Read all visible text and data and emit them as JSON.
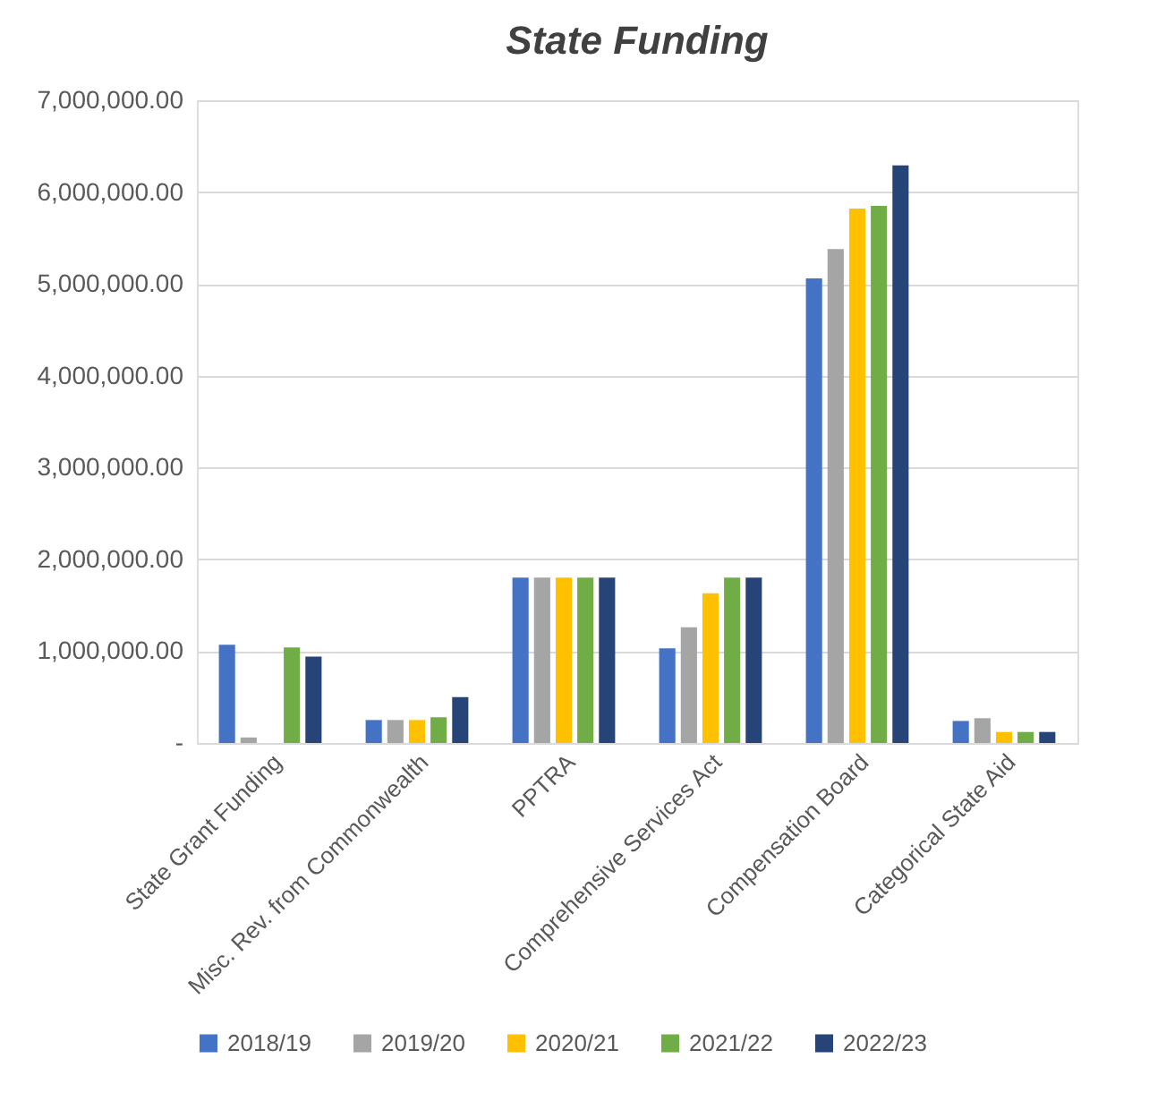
{
  "chart_data": {
    "type": "bar",
    "title": "State Funding",
    "categories": [
      "State Grant Funding",
      "Misc. Rev. from Commonwealth",
      "PPTRA",
      "Comprehensive Services Act",
      "Compensation Board",
      "Categorical State Aid"
    ],
    "series": [
      {
        "name": "2018/19",
        "color": "#4472c4",
        "values": [
          1070000,
          250000,
          1800000,
          1030000,
          5060000,
          240000
        ]
      },
      {
        "name": "2019/20",
        "color": "#a5a5a5",
        "values": [
          60000,
          250000,
          1800000,
          1260000,
          5380000,
          270000
        ]
      },
      {
        "name": "2020/21",
        "color": "#ffc000",
        "values": [
          null,
          250000,
          1800000,
          1630000,
          5820000,
          120000
        ]
      },
      {
        "name": "2021/22",
        "color": "#70ad47",
        "values": [
          1040000,
          280000,
          1800000,
          1800000,
          5850000,
          120000
        ]
      },
      {
        "name": "2022/23",
        "color": "#264478",
        "values": [
          940000,
          500000,
          1800000,
          1800000,
          6290000,
          120000
        ]
      }
    ],
    "ylim": [
      0,
      7000000
    ],
    "yticks": [
      {
        "value": 0,
        "label": "-"
      },
      {
        "value": 1000000,
        "label": "1,000,000.00"
      },
      {
        "value": 2000000,
        "label": "2,000,000.00"
      },
      {
        "value": 3000000,
        "label": "3,000,000.00"
      },
      {
        "value": 4000000,
        "label": "4,000,000.00"
      },
      {
        "value": 5000000,
        "label": "5,000,000.00"
      },
      {
        "value": 6000000,
        "label": "6,000,000.00"
      },
      {
        "value": 7000000,
        "label": "7,000,000.00"
      }
    ],
    "grid": "y",
    "legend": "bottom"
  }
}
